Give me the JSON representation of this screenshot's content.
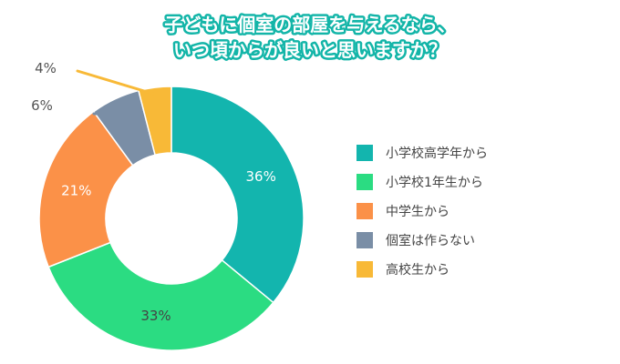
{
  "chart_data": {
    "type": "pie",
    "title_lines": [
      "子どもに個室の部屋を与えるなら、",
      "いつ頃からが良いと思いますか？"
    ],
    "categories": [
      "小学校高学年から",
      "小学校1年生から",
      "中学生から",
      "個室は作らない",
      "高校生から"
    ],
    "values": [
      36,
      33,
      21,
      6,
      4
    ],
    "value_labels": [
      "36%",
      "33%",
      "21%",
      "6%",
      "4%"
    ],
    "colors": [
      "#13b5ae",
      "#2bdc82",
      "#fb9148",
      "#7a8ea6",
      "#f8b937"
    ],
    "legend_position": "right"
  }
}
